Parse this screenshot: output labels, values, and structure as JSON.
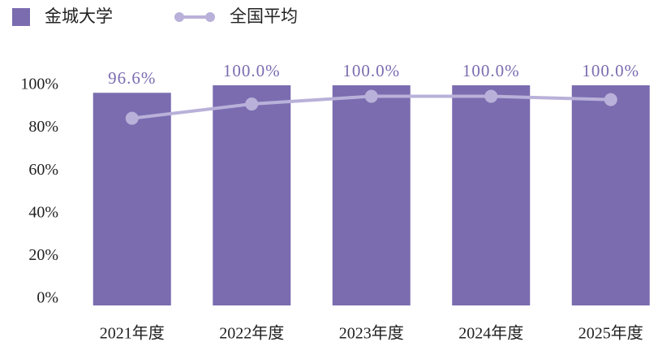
{
  "chart_data": {
    "type": "bar_line",
    "categories": [
      "2021年度",
      "2022年度",
      "2023年度",
      "2024年度",
      "2025年度"
    ],
    "series": [
      {
        "name": "金城大学",
        "type": "bar",
        "color": "#7b6cb0",
        "values": [
          96.6,
          100,
          100,
          100,
          100
        ],
        "value_labels": [
          "96.6%",
          "100.0%",
          "100.0%",
          "100.0%",
          "100.0%"
        ]
      },
      {
        "name": "全国平均",
        "type": "line",
        "color": "#b9b1d9",
        "values": [
          85,
          91.5,
          95,
          95,
          93.5
        ]
      }
    ],
    "ylim": [
      0,
      100
    ],
    "yticks": [
      {
        "value": 0,
        "label": "0%"
      },
      {
        "value": 20,
        "label": "20%"
      },
      {
        "value": 40,
        "label": "40%"
      },
      {
        "value": 60,
        "label": "60%"
      },
      {
        "value": 80,
        "label": "80%"
      },
      {
        "value": 100,
        "label": "100%"
      }
    ],
    "grid": false
  }
}
